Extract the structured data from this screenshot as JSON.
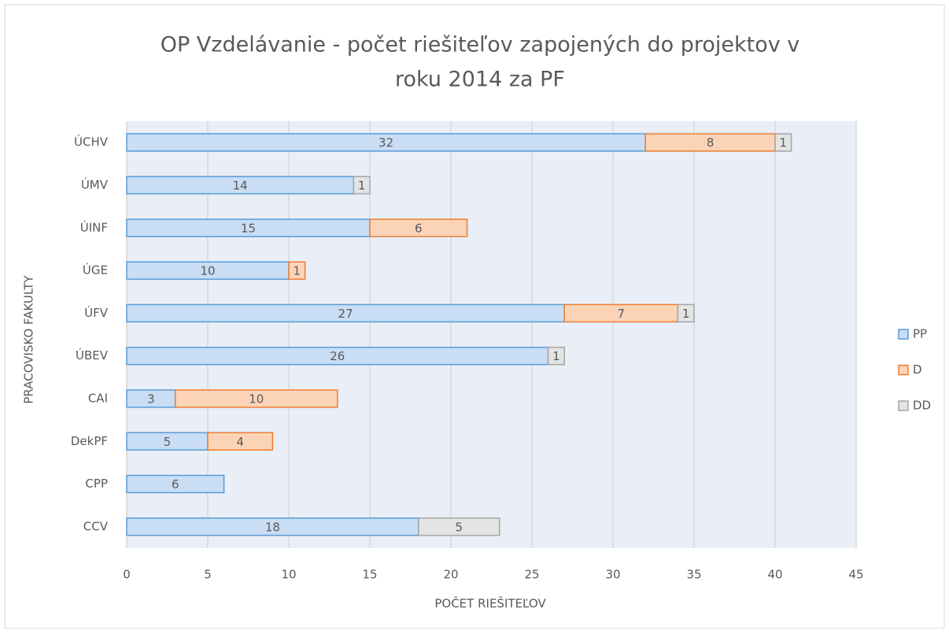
{
  "chart_data": {
    "type": "stacked-bar-horizontal",
    "title": [
      "OP Vzdelávanie - počet riešiteľov zapojených do projektov v",
      "roku 2014 za PF"
    ],
    "x_label": "POČET RIEŠITEĽOV",
    "y_label": "PRACOVISKO FAKULTY",
    "categories": [
      "ÚCHV",
      "ÚMV",
      "ÚINF",
      "ÚGE",
      "ÚFV",
      "ÚBEV",
      "CAI",
      "DekPF",
      "CPP",
      "CCV"
    ],
    "series": [
      {
        "name": "PP",
        "color": "#c9ddf4",
        "stroke": "#5b9bd5",
        "values": [
          32,
          14,
          15,
          10,
          27,
          26,
          3,
          5,
          6,
          18
        ]
      },
      {
        "name": "D",
        "color": "#fbd4b8",
        "stroke": "#ed7d31",
        "values": [
          8,
          null,
          6,
          1,
          7,
          null,
          10,
          4,
          null,
          null
        ]
      },
      {
        "name": "DD",
        "color": "#e4e4e4",
        "stroke": "#a5a5a5",
        "values": [
          1,
          1,
          null,
          null,
          1,
          1,
          null,
          null,
          null,
          5
        ]
      }
    ],
    "xlim": [
      0,
      45
    ],
    "xticks": [
      0,
      5,
      10,
      15,
      20,
      25,
      30,
      35,
      40,
      45
    ],
    "grid": true,
    "legend": "right"
  }
}
